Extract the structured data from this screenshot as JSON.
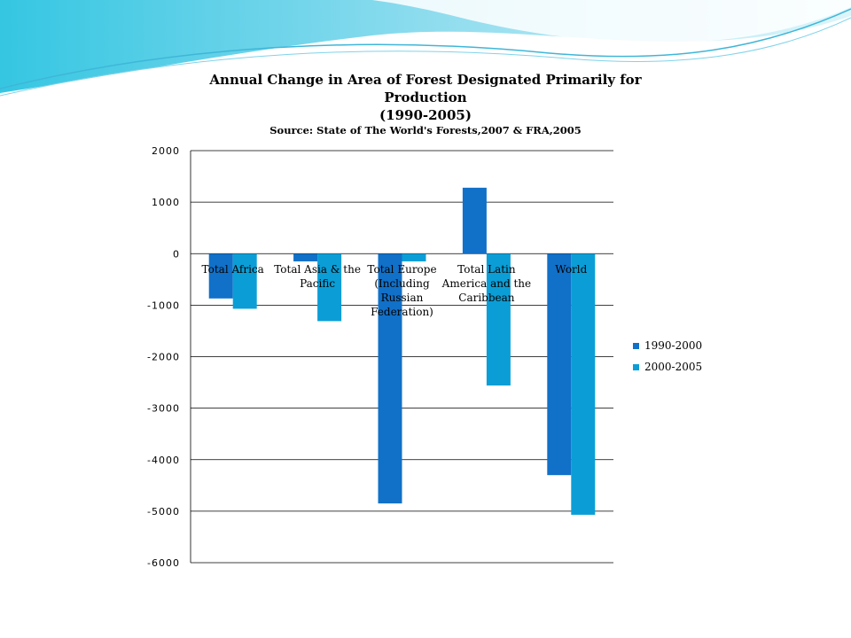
{
  "colors": {
    "series_1990": "#1170C8",
    "series_2000": "#0B9ED6",
    "grid": "#000000",
    "wave_dark": "#2FC4E0",
    "wave_light": "#BDEBF4"
  },
  "chart_data": {
    "type": "bar",
    "title_lines": [
      "Annual Change in Area of Forest Designated Primarily for",
      "Production",
      "(1990-2005)"
    ],
    "subtitle": "Source: State of The World's Forests,2007 & FRA,2005",
    "categories": [
      [
        "Total Africa"
      ],
      [
        "Total Asia & the",
        "Pacific"
      ],
      [
        "Total Europe",
        "(Including",
        "Russian",
        "Federation)"
      ],
      [
        "Total Latin",
        "America and the",
        "Caribbean"
      ],
      [
        "World"
      ]
    ],
    "series": [
      {
        "name": "1990-2000",
        "values": [
          -870,
          -150,
          -4850,
          1280,
          -4300
        ]
      },
      {
        "name": "2000-2005",
        "values": [
          -1070,
          -1310,
          -150,
          -2560,
          -5070
        ]
      }
    ],
    "yticks": [
      "2000",
      "1000",
      "0",
      "-1000",
      "-2000",
      "-3000",
      "-4000",
      "-5000",
      "-6000"
    ],
    "ylim": [
      -6000,
      2000
    ],
    "grid": true,
    "legend_position": "right"
  }
}
